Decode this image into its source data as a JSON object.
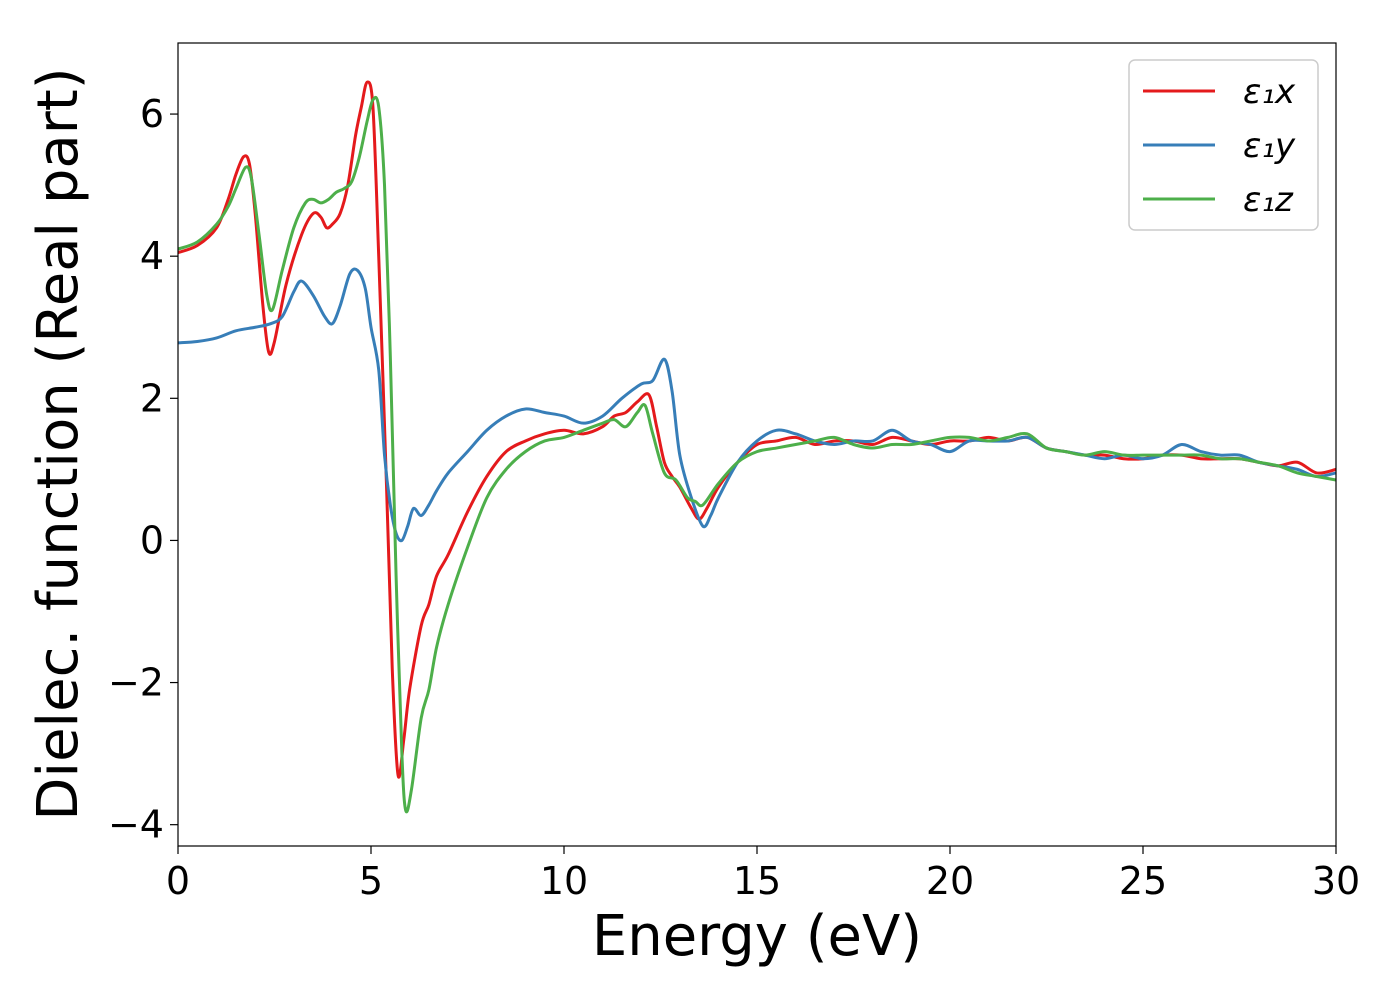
{
  "chart_data": {
    "type": "line",
    "xlabel": "Energy (eV)",
    "ylabel": "Dielec. function (Real part)",
    "xlim": [
      0,
      30
    ],
    "ylim": [
      -4.3,
      7.0
    ],
    "xticks": [
      0,
      5,
      10,
      15,
      20,
      25,
      30
    ],
    "xtick_labels": [
      "0",
      "5",
      "10",
      "15",
      "20",
      "25",
      "30"
    ],
    "yticks": [
      -4,
      -2,
      0,
      2,
      4,
      6
    ],
    "ytick_labels": [
      "−4",
      "−2",
      "0",
      "2",
      "4",
      "6"
    ],
    "grid": false,
    "legend_position": "top-right",
    "series": [
      {
        "name": "ε₁x",
        "legend_label": "ε₁x",
        "color": "#e41a1c",
        "x": [
          0,
          0.5,
          1.0,
          1.3,
          1.5,
          1.7,
          1.85,
          2.0,
          2.2,
          2.35,
          2.5,
          2.8,
          3.2,
          3.5,
          3.7,
          3.85,
          4.0,
          4.2,
          4.4,
          4.6,
          4.75,
          4.9,
          5.05,
          5.2,
          5.4,
          5.55,
          5.7,
          5.85,
          6.0,
          6.3,
          6.5,
          6.7,
          7.0,
          7.5,
          8.0,
          8.5,
          9.0,
          9.5,
          10.0,
          10.5,
          11.0,
          11.3,
          11.6,
          11.9,
          12.2,
          12.4,
          12.6,
          12.8,
          13.0,
          13.3,
          13.5,
          13.7,
          14.0,
          14.5,
          15.0,
          15.5,
          16.0,
          16.5,
          17.0,
          17.5,
          18.0,
          18.5,
          19.0,
          19.5,
          20.0,
          20.5,
          21.0,
          21.5,
          22.0,
          22.5,
          23.0,
          23.5,
          24.0,
          24.5,
          25.0,
          25.5,
          26.0,
          26.5,
          27.0,
          27.5,
          28.0,
          28.5,
          29.0,
          29.5,
          30.0
        ],
        "y": [
          4.05,
          4.15,
          4.4,
          4.8,
          5.15,
          5.4,
          5.3,
          4.6,
          3.3,
          2.65,
          2.8,
          3.6,
          4.3,
          4.6,
          4.55,
          4.4,
          4.45,
          4.6,
          5.0,
          5.7,
          6.1,
          6.45,
          6.1,
          4.0,
          0.8,
          -1.8,
          -3.3,
          -2.8,
          -2.1,
          -1.2,
          -0.9,
          -0.5,
          -0.2,
          0.4,
          0.9,
          1.25,
          1.4,
          1.5,
          1.55,
          1.5,
          1.6,
          1.75,
          1.8,
          1.95,
          2.05,
          1.6,
          1.1,
          0.9,
          0.75,
          0.45,
          0.3,
          0.45,
          0.75,
          1.1,
          1.35,
          1.4,
          1.45,
          1.35,
          1.4,
          1.4,
          1.35,
          1.45,
          1.4,
          1.35,
          1.4,
          1.4,
          1.45,
          1.4,
          1.45,
          1.3,
          1.25,
          1.2,
          1.2,
          1.15,
          1.15,
          1.2,
          1.2,
          1.15,
          1.15,
          1.15,
          1.1,
          1.05,
          1.1,
          0.95,
          1.0
        ]
      },
      {
        "name": "ε₁y",
        "legend_label": "ε₁y",
        "color": "#377eb8",
        "x": [
          0,
          0.5,
          1.0,
          1.5,
          2.0,
          2.4,
          2.7,
          3.0,
          3.2,
          3.5,
          3.8,
          4.0,
          4.2,
          4.45,
          4.65,
          4.85,
          5.0,
          5.2,
          5.35,
          5.5,
          5.65,
          5.8,
          5.95,
          6.1,
          6.3,
          6.5,
          6.7,
          7.0,
          7.5,
          8.0,
          8.5,
          9.0,
          9.5,
          10.0,
          10.5,
          11.0,
          11.5,
          12.0,
          12.3,
          12.6,
          12.8,
          13.0,
          13.3,
          13.6,
          13.8,
          14.0,
          14.5,
          15.0,
          15.5,
          16.0,
          16.5,
          17.0,
          17.5,
          18.0,
          18.5,
          19.0,
          19.5,
          20.0,
          20.5,
          21.0,
          21.5,
          22.0,
          22.5,
          23.0,
          23.5,
          24.0,
          24.5,
          25.0,
          25.5,
          26.0,
          26.5,
          27.0,
          27.5,
          28.0,
          28.5,
          29.0,
          29.5,
          30.0
        ],
        "y": [
          2.78,
          2.8,
          2.85,
          2.95,
          3.0,
          3.05,
          3.15,
          3.5,
          3.65,
          3.45,
          3.15,
          3.05,
          3.3,
          3.75,
          3.8,
          3.55,
          3.0,
          2.4,
          1.2,
          0.5,
          0.1,
          0.0,
          0.2,
          0.45,
          0.35,
          0.5,
          0.7,
          0.95,
          1.25,
          1.55,
          1.75,
          1.85,
          1.8,
          1.75,
          1.65,
          1.75,
          2.0,
          2.2,
          2.25,
          2.55,
          2.1,
          1.2,
          0.6,
          0.2,
          0.35,
          0.6,
          1.1,
          1.4,
          1.55,
          1.5,
          1.4,
          1.35,
          1.4,
          1.4,
          1.55,
          1.4,
          1.35,
          1.25,
          1.4,
          1.4,
          1.4,
          1.45,
          1.3,
          1.25,
          1.2,
          1.15,
          1.2,
          1.15,
          1.2,
          1.35,
          1.25,
          1.2,
          1.2,
          1.1,
          1.05,
          1.0,
          0.9,
          0.95
        ]
      },
      {
        "name": "ε₁z",
        "legend_label": "ε₁z",
        "color": "#4daf4a",
        "x": [
          0,
          0.5,
          1.0,
          1.3,
          1.5,
          1.75,
          1.9,
          2.1,
          2.3,
          2.45,
          2.7,
          3.0,
          3.3,
          3.5,
          3.7,
          3.9,
          4.1,
          4.3,
          4.5,
          4.7,
          4.9,
          5.05,
          5.2,
          5.35,
          5.5,
          5.65,
          5.8,
          5.9,
          6.05,
          6.3,
          6.5,
          6.7,
          7.0,
          7.5,
          8.0,
          8.5,
          9.0,
          9.5,
          10.0,
          10.5,
          11.0,
          11.3,
          11.6,
          11.9,
          12.1,
          12.3,
          12.6,
          12.9,
          13.2,
          13.4,
          13.6,
          14.0,
          14.5,
          15.0,
          15.5,
          16.0,
          16.5,
          17.0,
          17.5,
          18.0,
          18.5,
          19.0,
          19.5,
          20.0,
          20.5,
          21.0,
          21.5,
          22.0,
          22.5,
          23.0,
          23.5,
          24.0,
          24.5,
          25.0,
          25.5,
          26.0,
          26.5,
          27.0,
          27.5,
          28.0,
          28.5,
          29.0,
          29.5,
          30.0
        ],
        "y": [
          4.1,
          4.2,
          4.45,
          4.7,
          4.95,
          5.25,
          5.1,
          4.3,
          3.45,
          3.25,
          3.8,
          4.4,
          4.75,
          4.8,
          4.75,
          4.8,
          4.9,
          4.95,
          5.05,
          5.4,
          5.9,
          6.2,
          6.1,
          5.0,
          2.6,
          -0.5,
          -3.0,
          -3.8,
          -3.5,
          -2.5,
          -2.1,
          -1.5,
          -0.9,
          -0.1,
          0.6,
          1.0,
          1.25,
          1.4,
          1.45,
          1.55,
          1.65,
          1.7,
          1.6,
          1.8,
          1.9,
          1.5,
          0.95,
          0.85,
          0.6,
          0.55,
          0.5,
          0.8,
          1.1,
          1.25,
          1.3,
          1.35,
          1.4,
          1.45,
          1.35,
          1.3,
          1.35,
          1.35,
          1.4,
          1.45,
          1.45,
          1.4,
          1.45,
          1.5,
          1.3,
          1.25,
          1.2,
          1.25,
          1.2,
          1.2,
          1.2,
          1.2,
          1.2,
          1.15,
          1.15,
          1.1,
          1.05,
          0.95,
          0.9,
          0.85
        ]
      }
    ]
  }
}
